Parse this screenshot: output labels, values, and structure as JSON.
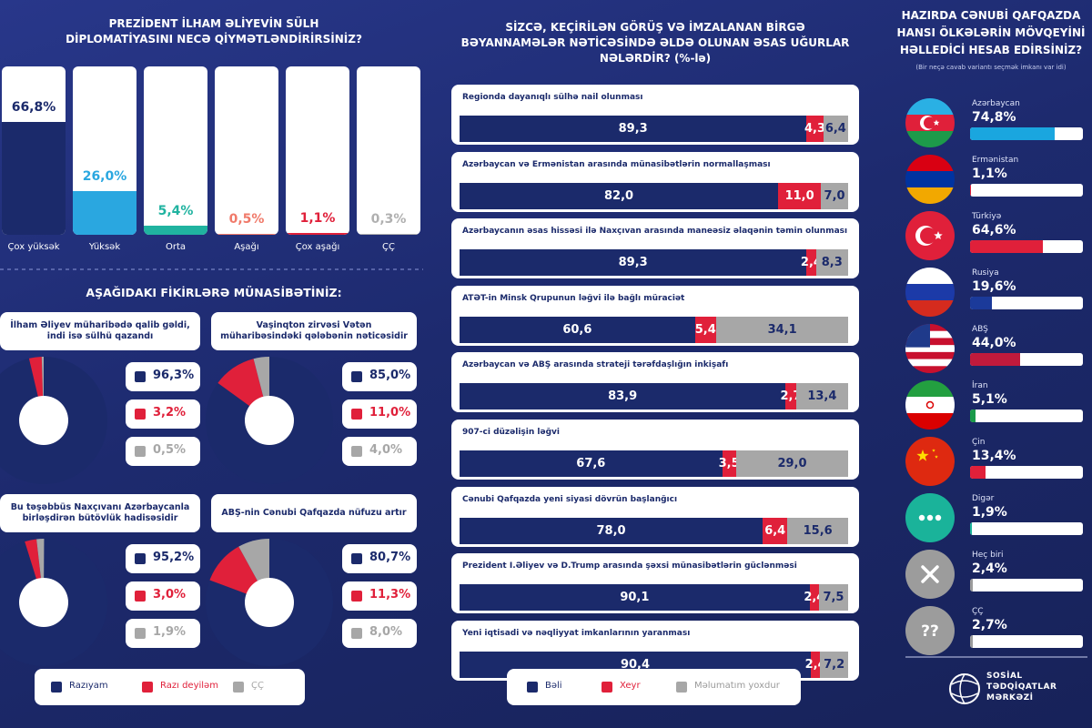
{
  "chart_data": [
    {
      "type": "bar",
      "title": "PREZİDENT İLHAM ƏLİYEVİN SÜLH DİPLOMATİYASINI NECƏ QİYMƏTLƏNDİRİRSİNİZ?",
      "categories": [
        "Çox yüksək",
        "Yüksək",
        "Orta",
        "Aşağı",
        "Çox aşağı",
        "ÇÇ"
      ],
      "values": [
        66.8,
        26.0,
        5.4,
        0.5,
        1.1,
        0.3
      ],
      "value_labels": [
        "66,8%",
        "26,0%",
        "5,4%",
        "0,5%",
        "1,1%",
        "0,3%"
      ],
      "colors": [
        "#1b2a6b",
        "#2aa7e0",
        "#20b3a0",
        "#f07a6a",
        "#e0203a",
        "#b0b0b0"
      ],
      "ylim": [
        0,
        100
      ]
    },
    {
      "type": "pie",
      "title": "AŞAĞIDAKI FİKİRLƏRƏ MÜNASİBƏTİNİZ:",
      "categories": [
        "Razıyam",
        "Razı deyiləm",
        "ÇÇ"
      ],
      "colors": [
        "#1b2a6b",
        "#e0203a",
        "#a7a7a7"
      ],
      "pies": [
        {
          "title": "İlham Əliyev müharibədə qalib gəldi, indi isə sülhü qazandı",
          "values": [
            96.3,
            3.2,
            0.5
          ],
          "value_labels": [
            "96,3%",
            "3,2%",
            "0,5%"
          ]
        },
        {
          "title": "Vaşinqton zirvəsi Vətən müharibəsindəki qələbənin nəticəsidir",
          "values": [
            85.0,
            11.0,
            4.0
          ],
          "value_labels": [
            "85,0%",
            "11,0%",
            "4,0%"
          ]
        },
        {
          "title": "Bu təşəbbüs Naxçıvanı Azərbaycanla birləşdirən bütövlük hadisəsidir",
          "values": [
            95.2,
            3.0,
            1.9
          ],
          "value_labels": [
            "95,2%",
            "3,0%",
            "1,9%"
          ]
        },
        {
          "title": "ABŞ-nin Cənubi Qafqazda nüfuzu artır",
          "values": [
            80.7,
            11.3,
            8.0
          ],
          "value_labels": [
            "80,7%",
            "11,3%",
            "8,0%"
          ]
        }
      ]
    },
    {
      "type": "stacked-bar",
      "title": "SİZCƏ, KEÇİRİLƏN GÖRÜŞ VƏ İMZALANAN BİRGƏ BƏYANNAMƏLƏR NƏTİCƏSİNDƏ ƏLDƏ OLUNAN ƏSAS UĞURLAR NƏLƏRDİR? (%-lə)",
      "categories": [
        "Regionda dayanıqlı sülhə nail olunması",
        "Azərbaycan və Ermənistan arasında münasibətlərin normallaşması",
        "Azərbaycanın əsas hissəsi ilə Naxçıvan arasında maneəsiz əlaqənin təmin olunması",
        "ATƏT-in Minsk Qrupunun ləğvi ilə bağlı müraciət",
        "Azərbaycan və ABŞ arasında strateji tərəfdaşlığın inkişafı",
        "907-ci düzəlişin ləğvi",
        "Cənubi Qafqazda yeni siyasi dövrün başlanğıcı",
        "Prezident İ.Əliyev və D.Trump arasında şəxsi münasibətlərin güclənməsi",
        "Yeni iqtisadi və nəqliyyat imkanlarının yaranması"
      ],
      "series": [
        {
          "name": "Bəli",
          "color": "#1b2a6b",
          "values": [
            89.3,
            82.0,
            89.3,
            60.6,
            83.9,
            67.6,
            78.0,
            90.1,
            90.4
          ],
          "value_labels": [
            "89,3",
            "82,0",
            "89,3",
            "60,6",
            "83,9",
            "67,6",
            "78,0",
            "90,1",
            "90,4"
          ]
        },
        {
          "name": "Xeyr",
          "color": "#e0203a",
          "values": [
            4.3,
            11.0,
            2.4,
            5.4,
            2.7,
            3.5,
            6.4,
            2.4,
            2.4
          ],
          "value_labels": [
            "4,3",
            "11,0",
            "2,4",
            "5,4",
            "2,7",
            "3,5",
            "6,4",
            "2,4",
            "2,4"
          ]
        },
        {
          "name": "Məlumatım yoxdur",
          "color": "#a7a7a7",
          "values": [
            6.4,
            7.0,
            8.3,
            34.1,
            13.4,
            29.0,
            15.6,
            7.5,
            7.2
          ],
          "value_labels": [
            "6,4",
            "7,0",
            "8,3",
            "34,1",
            "13,4",
            "29,0",
            "15,6",
            "7,5",
            "7,2"
          ]
        }
      ],
      "xlim": [
        0,
        100
      ]
    },
    {
      "type": "bar",
      "title": "HAZIRDA CƏNUBİ QAFQAZDA HANSI ÖLKƏLƏRİN MÖVQEYİNİ HƏLLEDİCİ HESAB EDİRSİNİZ?",
      "subtitle": "(Bir neçə cavab variantı seçmək imkanı var idi)",
      "categories": [
        "Azərbaycan",
        "Ermənistan",
        "Türkiyə",
        "Rusiya",
        "ABŞ",
        "İran",
        "Çin",
        "Digər",
        "Heç biri",
        "ÇÇ"
      ],
      "values": [
        74.8,
        1.1,
        64.6,
        19.6,
        44.0,
        5.1,
        13.4,
        1.9,
        2.4,
        2.7
      ],
      "value_labels": [
        "74,8%",
        "1,1%",
        "64,6%",
        "19,6%",
        "44,0%",
        "5,1%",
        "13,4%",
        "1,9%",
        "2,4%",
        "2,7%"
      ],
      "colors": [
        "#1aa6df",
        "#e0203a",
        "#e0203a",
        "#1b3a9a",
        "#c01a3c",
        "#1a9a4a",
        "#e0203a",
        "#1ab39a",
        "#9c9c9c",
        "#9c9c9c"
      ],
      "xlim": [
        0,
        100
      ],
      "unknown_icon": "??"
    }
  ],
  "logo": {
    "lines": [
      "SOSİAL",
      "TƏDQİQATLAR",
      "MƏRKƏZİ"
    ]
  }
}
